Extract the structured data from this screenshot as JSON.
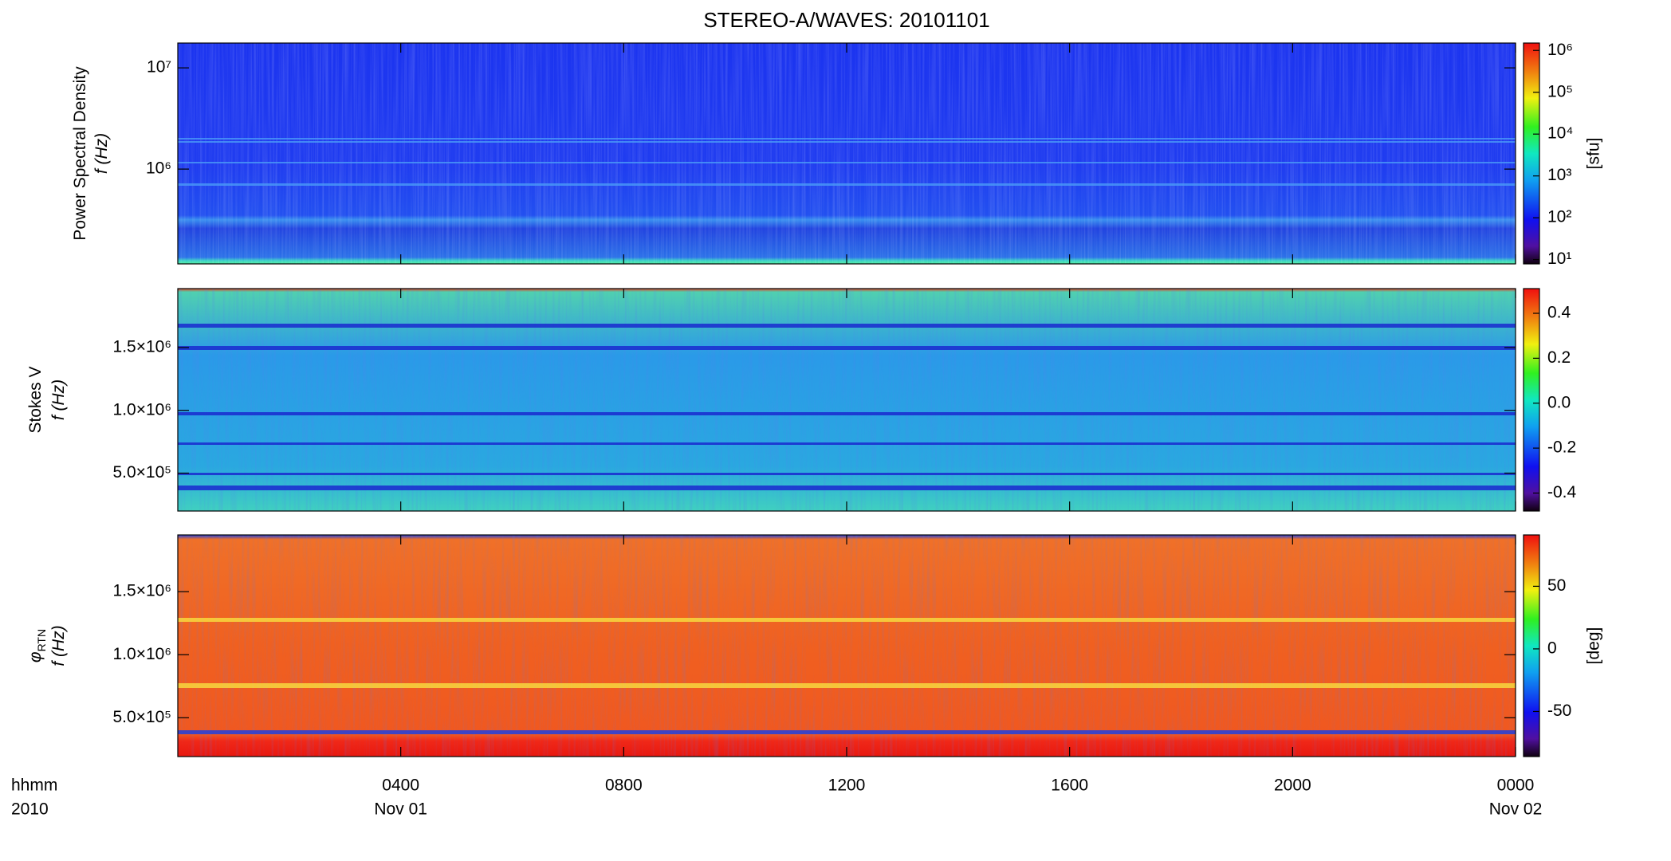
{
  "title": "STEREO-A/WAVES: 20101101",
  "x_axis": {
    "labels": [
      "hhmm",
      "2010"
    ],
    "xlim": [
      0,
      24
    ],
    "xticks": [
      {
        "value": 4,
        "label": "0400"
      },
      {
        "value": 8,
        "label": "0800"
      },
      {
        "value": 12,
        "label": "1200"
      },
      {
        "value": 16,
        "label": "1600"
      },
      {
        "value": 20,
        "label": "2000"
      },
      {
        "value": 24,
        "label": "0000"
      }
    ],
    "dates": [
      {
        "value": 4,
        "label": "Nov 01"
      },
      {
        "value": 24,
        "label": "Nov 02"
      }
    ]
  },
  "panels": [
    {
      "ylabel": [
        "Power Spectral Density",
        "f (Hz)"
      ],
      "log": true,
      "ylim": [
        115800,
        17580000
      ],
      "yticks": [
        {
          "value": 1000000,
          "label": "10⁶"
        },
        {
          "value": 10000000,
          "label": "10⁷"
        }
      ],
      "colorbar": {
        "label": "[sfu]",
        "log": true,
        "ylim": [
          7.9,
          1500000
        ],
        "yticks": [
          {
            "value": 10,
            "label": "10¹"
          },
          {
            "value": 100,
            "label": "10²"
          },
          {
            "value": 1000,
            "label": "10³"
          },
          {
            "value": 10000,
            "label": "10⁴"
          },
          {
            "value": 100000,
            "label": "10⁵"
          },
          {
            "value": 1000000,
            "label": "10⁶"
          }
        ]
      }
    },
    {
      "ylabel": [
        "Stokes V",
        "f (Hz)"
      ],
      "log": false,
      "ylim": [
        198000,
        1970000
      ],
      "yticks": [
        {
          "value": 500000,
          "label": "5.0×10⁵"
        },
        {
          "value": 1000000,
          "label": "1.0×10⁶"
        },
        {
          "value": 1500000,
          "label": "1.5×10⁶"
        }
      ],
      "colorbar": {
        "log": false,
        "ylim": [
          -0.48,
          0.51
        ],
        "yticks": [
          0.4,
          0.2,
          {
            "value": 0,
            "label": "0.0"
          },
          -0.2,
          -0.4
        ]
      }
    },
    {
      "ylabel": [
        "φ",
        "f (Hz)"
      ],
      "ylabel_subscript": "RTN",
      "log": false,
      "ylim": [
        192000,
        1950000
      ],
      "yticks": [
        {
          "value": 500000,
          "label": "5.0×10⁵"
        },
        {
          "value": 1000000,
          "label": "1.0×10⁶"
        },
        {
          "value": 1500000,
          "label": "1.5×10⁶"
        }
      ],
      "colorbar": {
        "label": "[deg]",
        "log": false,
        "ylim": [
          -86,
          91
        ],
        "yticks": [
          50,
          0,
          -50
        ]
      }
    }
  ]
}
